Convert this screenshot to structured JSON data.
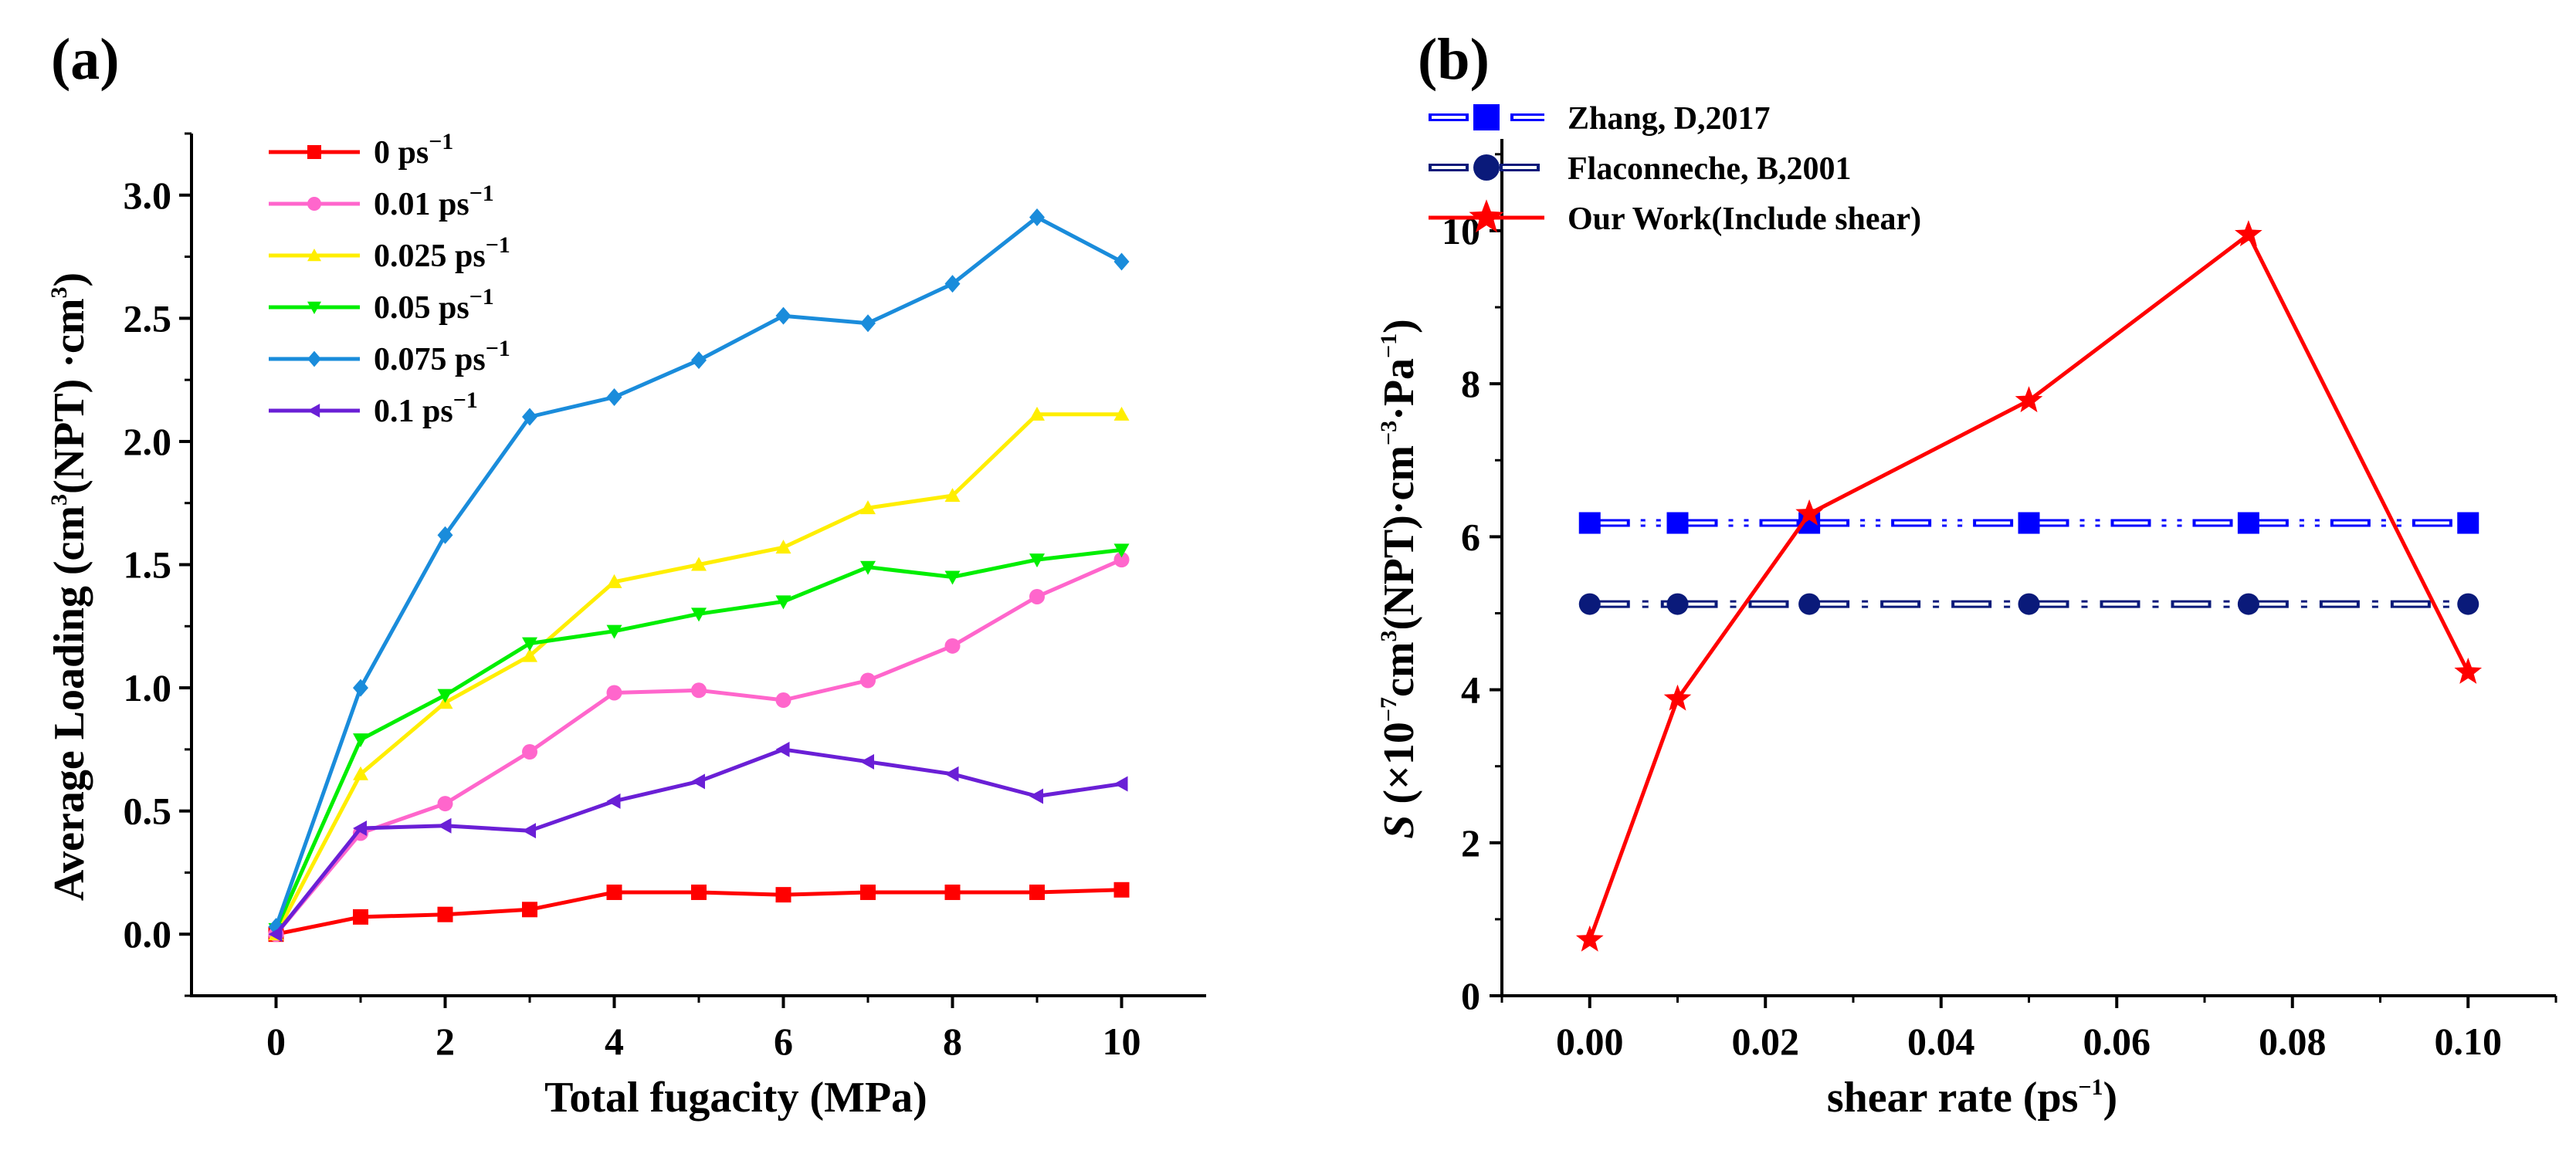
{
  "chart_data": [
    {
      "panel_label": "(a)",
      "type": "line",
      "xlabel": "Total fugacity (MPa)",
      "ylabel": "Average Loading (cm³(NPT)·cm³)",
      "xlim": [
        -1,
        11
      ],
      "ylim": [
        -0.25,
        3.25
      ],
      "xticks": [
        0,
        2,
        4,
        6,
        8,
        10
      ],
      "yticks": [
        0.0,
        0.5,
        1.0,
        1.5,
        2.0,
        2.5,
        3.0
      ],
      "ytick_labels": [
        "0.0",
        "0.5",
        "1.0",
        "1.5",
        "2.0",
        "2.5",
        "3.0"
      ],
      "legend_position": "top-left",
      "x": [
        0,
        1,
        2,
        3,
        4,
        5,
        6,
        7,
        8,
        9,
        10
      ],
      "series": [
        {
          "name": "0 ps⁻¹",
          "color": "#ff0000",
          "marker": "square",
          "values": [
            0.0,
            0.07,
            0.08,
            0.1,
            0.17,
            0.17,
            0.16,
            0.17,
            0.17,
            0.17,
            0.18
          ]
        },
        {
          "name": "0.01 ps⁻¹",
          "color": "#ff66cc",
          "marker": "circle",
          "values": [
            0.0,
            0.41,
            0.53,
            0.74,
            0.98,
            0.99,
            0.95,
            1.03,
            1.17,
            1.37,
            1.52
          ]
        },
        {
          "name": "0.025 ps⁻¹",
          "color": "#ffee00",
          "marker": "triangle-up",
          "values": [
            0.0,
            0.65,
            0.94,
            1.13,
            1.43,
            1.5,
            1.57,
            1.73,
            1.78,
            2.11,
            2.11
          ]
        },
        {
          "name": "0.05 ps⁻¹",
          "color": "#00ee00",
          "marker": "triangle-down",
          "values": [
            0.02,
            0.79,
            0.97,
            1.18,
            1.23,
            1.3,
            1.35,
            1.49,
            1.45,
            1.52,
            1.56
          ]
        },
        {
          "name": "0.075 ps⁻¹",
          "color": "#1a8cdb",
          "marker": "diamond",
          "values": [
            0.03,
            1.0,
            1.62,
            2.1,
            2.18,
            2.33,
            2.51,
            2.48,
            2.64,
            2.91,
            2.73
          ]
        },
        {
          "name": "0.1 ps⁻¹",
          "color": "#6a1fd6",
          "marker": "triangle-left",
          "values": [
            0.0,
            0.43,
            0.44,
            0.42,
            0.54,
            0.62,
            0.75,
            0.7,
            0.65,
            0.56,
            0.61
          ]
        }
      ]
    },
    {
      "panel_label": "(b)",
      "type": "line",
      "xlabel": "shear rate (ps⁻¹)",
      "ylabel": "S (×10⁻⁷cm³(NPT)·cm⁻³·Pa⁻¹)",
      "xlim": [
        -0.01,
        0.11
      ],
      "ylim": [
        0,
        11.2
      ],
      "xticks": [
        0.0,
        0.02,
        0.04,
        0.06,
        0.08,
        0.1
      ],
      "xtick_labels": [
        "0.00",
        "0.02",
        "0.04",
        "0.06",
        "0.08",
        "0.10"
      ],
      "yticks": [
        0,
        2,
        4,
        6,
        8,
        10
      ],
      "ytick_labels": [
        "0",
        "2",
        "4",
        "6",
        "8",
        "10"
      ],
      "legend_position": "top-left",
      "series": [
        {
          "name": "Zhang, D,2017",
          "color": "#0000ff",
          "marker": "square",
          "style": "dash-dot-dot",
          "x": [
            0,
            0.01,
            0.025,
            0.05,
            0.075,
            0.1
          ],
          "values": [
            6.18,
            6.18,
            6.18,
            6.18,
            6.18,
            6.18
          ]
        },
        {
          "name": "Flaconneche, B,2001",
          "color": "#0a1a7a",
          "marker": "circle",
          "style": "dash-dot-hollow",
          "x": [
            0,
            0.01,
            0.025,
            0.05,
            0.075,
            0.1
          ],
          "values": [
            5.12,
            5.12,
            5.12,
            5.12,
            5.12,
            5.12
          ]
        },
        {
          "name": "Our Work(Include shear)",
          "color": "#ff0000",
          "marker": "star",
          "style": "solid",
          "x": [
            0,
            0.01,
            0.025,
            0.05,
            0.075,
            0.1
          ],
          "values": [
            0.73,
            3.88,
            6.3,
            7.78,
            9.95,
            4.23
          ]
        }
      ]
    }
  ]
}
